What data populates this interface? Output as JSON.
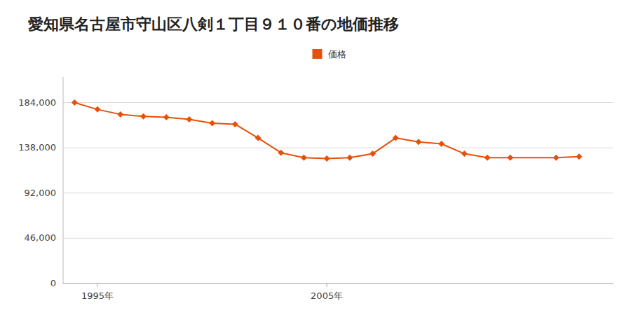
{
  "chart_data": {
    "type": "line",
    "title": "愛知県名古屋市守山区八剣１丁目９１０番の地価推移",
    "x": [
      1994,
      1995,
      1996,
      1997,
      1998,
      1999,
      2000,
      2001,
      2002,
      2003,
      2004,
      2005,
      2006,
      2007,
      2008,
      2009,
      2010,
      2011,
      2012,
      2013,
      2015,
      2016
    ],
    "series": [
      {
        "name": "価格",
        "color": "#e8500a",
        "marker": "diamond",
        "line_style": "solid",
        "values": [
          184000,
          177000,
          172000,
          170000,
          169000,
          167000,
          163000,
          162000,
          148000,
          133000,
          128000,
          127000,
          128000,
          132000,
          148000,
          144000,
          142000,
          132000,
          128000,
          128000,
          128000,
          129000
        ]
      }
    ],
    "xlim": [
      1993.5,
      2017.5
    ],
    "xticks": [
      {
        "value": 1995,
        "label": "1995年"
      },
      {
        "value": 2005,
        "label": "2005年"
      }
    ],
    "ylim": [
      0,
      210000
    ],
    "yticks": [
      0,
      {
        "value": 46000,
        "label": "46,000"
      },
      {
        "value": 92000,
        "label": "92,000"
      },
      {
        "value": 138000,
        "label": "138,000"
      },
      {
        "value": 184000,
        "label": "184,000"
      }
    ],
    "grid": true,
    "legend": "top"
  }
}
